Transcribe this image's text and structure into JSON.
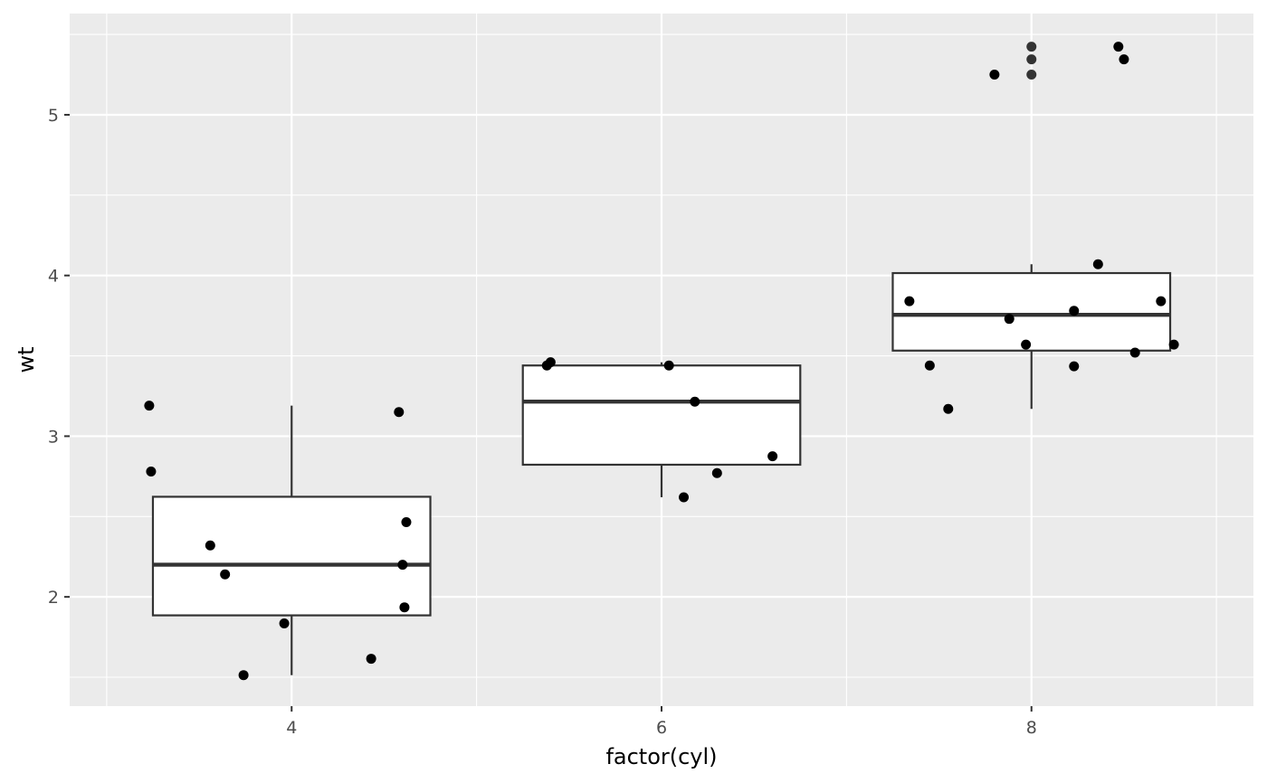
{
  "chart_data": {
    "type": "boxplot",
    "xlabel": "factor(cyl)",
    "ylabel": "wt",
    "x_ticks": [
      4,
      6,
      8
    ],
    "y_ticks": [
      2,
      3,
      4,
      5
    ],
    "xlim": [
      2.8,
      9.2
    ],
    "ylim": [
      1.32,
      5.63
    ],
    "grid": true,
    "box_half_width": 0.75,
    "colors": {
      "panel": "#ebebeb",
      "grid": "#ffffff",
      "box_fill": "#ffffff",
      "box_line": "#333333",
      "point": "#000000",
      "outlier": "#333333"
    },
    "boxes": [
      {
        "x": 4,
        "lower_whisker": 1.513,
        "q1": 1.885,
        "median": 2.2,
        "q3": 2.623,
        "upper_whisker": 3.19,
        "outliers": []
      },
      {
        "x": 6,
        "lower_whisker": 2.62,
        "q1": 2.8225,
        "median": 3.215,
        "q3": 3.44,
        "upper_whisker": 3.46,
        "outliers": []
      },
      {
        "x": 8,
        "lower_whisker": 3.17,
        "q1": 3.5325,
        "median": 3.755,
        "q3": 4.015,
        "upper_whisker": 4.07,
        "outliers": [
          5.25,
          5.345,
          5.424
        ]
      }
    ],
    "points": [
      {
        "x": 3.23,
        "y": 3.19
      },
      {
        "x": 3.24,
        "y": 2.78
      },
      {
        "x": 3.56,
        "y": 2.32
      },
      {
        "x": 3.64,
        "y": 2.14
      },
      {
        "x": 3.74,
        "y": 1.513
      },
      {
        "x": 3.96,
        "y": 1.835
      },
      {
        "x": 4.43,
        "y": 1.615
      },
      {
        "x": 4.58,
        "y": 3.15
      },
      {
        "x": 4.6,
        "y": 2.2
      },
      {
        "x": 4.61,
        "y": 1.935
      },
      {
        "x": 4.62,
        "y": 2.465
      },
      {
        "x": 5.38,
        "y": 3.44
      },
      {
        "x": 5.4,
        "y": 3.46
      },
      {
        "x": 6.04,
        "y": 3.44
      },
      {
        "x": 6.12,
        "y": 2.62
      },
      {
        "x": 6.18,
        "y": 3.215
      },
      {
        "x": 6.3,
        "y": 2.77
      },
      {
        "x": 6.6,
        "y": 2.875
      },
      {
        "x": 7.34,
        "y": 3.84
      },
      {
        "x": 7.45,
        "y": 3.44
      },
      {
        "x": 7.55,
        "y": 3.17
      },
      {
        "x": 7.8,
        "y": 5.25
      },
      {
        "x": 7.88,
        "y": 3.73
      },
      {
        "x": 7.97,
        "y": 3.57
      },
      {
        "x": 8.23,
        "y": 3.78
      },
      {
        "x": 8.23,
        "y": 3.435
      },
      {
        "x": 8.36,
        "y": 4.07
      },
      {
        "x": 8.47,
        "y": 5.424
      },
      {
        "x": 8.5,
        "y": 5.345
      },
      {
        "x": 8.56,
        "y": 3.52
      },
      {
        "x": 8.7,
        "y": 3.84
      },
      {
        "x": 8.77,
        "y": 3.57
      }
    ]
  }
}
